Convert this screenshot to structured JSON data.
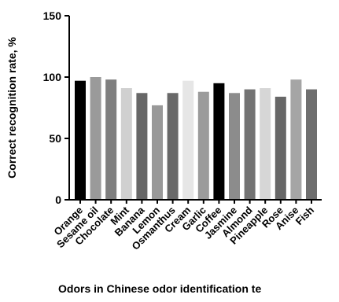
{
  "chart_data": {
    "type": "bar",
    "title": "",
    "xlabel": "Odors in Chinese odor identification te",
    "ylabel": "Correct recognition rate, %",
    "ylim": [
      0,
      150
    ],
    "yticks": [
      0,
      50,
      100,
      150
    ],
    "grid": false,
    "legend": "none",
    "categories": [
      "Orange",
      "Sesame oil",
      "Chocolate",
      "Mint",
      "Banana",
      "Lemon",
      "Osmanthus",
      "Cream",
      "Garlic",
      "Coffee",
      "Jasmine",
      "Almond",
      "Pineapple",
      "Rose",
      "Anise",
      "Fish"
    ],
    "values": [
      97,
      100,
      98,
      91,
      87,
      77,
      87,
      97,
      88,
      95,
      87,
      90,
      91,
      84,
      98,
      90
    ],
    "colors": [
      "#000000",
      "#9a9a9a",
      "#7f7f7f",
      "#d0d0d0",
      "#676767",
      "#999999",
      "#696969",
      "#e6e6e6",
      "#9b9b9b",
      "#000000",
      "#8c8c8c",
      "#737373",
      "#d6d6d6",
      "#676767",
      "#a5a5a5",
      "#6e6e6e"
    ]
  }
}
